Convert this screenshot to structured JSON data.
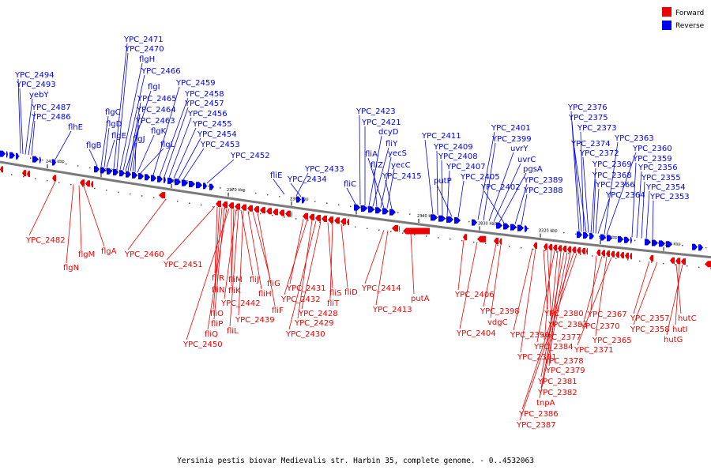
{
  "legend": {
    "forward": {
      "label": "Forward",
      "color": "#ee0000"
    },
    "reverse": {
      "label": "Reverse",
      "color": "#0000ee"
    }
  },
  "caption": "Yersinia pestis biovar Medievalis str. Harbin 35, complete genome. - 0..4532063",
  "scale_ticks": [
    "2400 kbp",
    "2390 kbp",
    "2380 kbp",
    "2370 kbp",
    "2360 kbp",
    "2350 kbp",
    "2340 kbp",
    "2330 kbp",
    "2320 kbp",
    "2310 kbp",
    "2300 kbp"
  ],
  "reverse_genes": [
    "YPC_2494",
    "YPC_2493",
    "yebY",
    "YPC_2487",
    "YPC_2486",
    "flhE",
    "flgB",
    "flgC",
    "flgD",
    "flgE",
    "YPC_2471",
    "YPC_2470",
    "flgH",
    "YPC_2466",
    "flgI",
    "YPC_2465",
    "YPC_2464",
    "YPC_2463",
    "flgJ",
    "flgK",
    "flgL",
    "YPC_2459",
    "YPC_2458",
    "YPC_2457",
    "YPC_2456",
    "YPC_2455",
    "YPC_2454",
    "YPC_2453",
    "YPC_2452",
    "fliE",
    "YPC_2433",
    "YPC_2434",
    "fliC",
    "YPC_2423",
    "YPC_2421",
    "dcyD",
    "fliY",
    "fliZ",
    "yecS",
    "fliA",
    "yecC",
    "YPC_2415",
    "YPC_2411",
    "YPC_2409",
    "YPC_2408",
    "YPC_2407",
    "putP",
    "YPC_2405",
    "YPC_2401",
    "YPC_2399",
    "uvrY",
    "uvrC",
    "pgsA",
    "YPC_2402",
    "YPC_2389",
    "YPC_2388",
    "YPC_2376",
    "YPC_2375",
    "YPC_2373",
    "YPC_2374",
    "YPC_2372",
    "YPC_2369",
    "YPC_2368",
    "YPC_2366",
    "YPC_2364",
    "YPC_2363",
    "YPC_2360",
    "YPC_2359",
    "YPC_2356",
    "YPC_2355",
    "YPC_2354",
    "YPC_2353"
  ],
  "forward_genes": [
    "YPC_2482",
    "flgN",
    "flgM",
    "flgA",
    "YPC_2460",
    "YPC_2451",
    "fliR",
    "fliN",
    "fliO",
    "fliP",
    "fliQ",
    "YPC_2450",
    "fliM",
    "fliK",
    "YPC_2442",
    "fliL",
    "fliJ",
    "YPC_2439",
    "fliH",
    "fliG",
    "fliF",
    "YPC_2431",
    "YPC_2432",
    "YPC_2429",
    "YPC_2430",
    "YPC_2428",
    "fliS",
    "fliT",
    "fliD",
    "YPC_2414",
    "YPC_2413",
    "putA",
    "YPC_2406",
    "YPC_2404",
    "YPC_2398",
    "vdgC",
    "YPC_2390",
    "YPC_2391",
    "YPC_2380",
    "YPC_2383",
    "YPC_2377",
    "YPC_2384",
    "YPC_2378",
    "YPC_2379",
    "YPC_2381",
    "YPC_2382",
    "tnpA",
    "YPC_2386",
    "YPC_2387",
    "YPC_2367",
    "YPC_2370",
    "YPC_2365",
    "YPC_2371",
    "YPC_2357",
    "YPC_2358",
    "hutC",
    "hutI",
    "hutG"
  ]
}
